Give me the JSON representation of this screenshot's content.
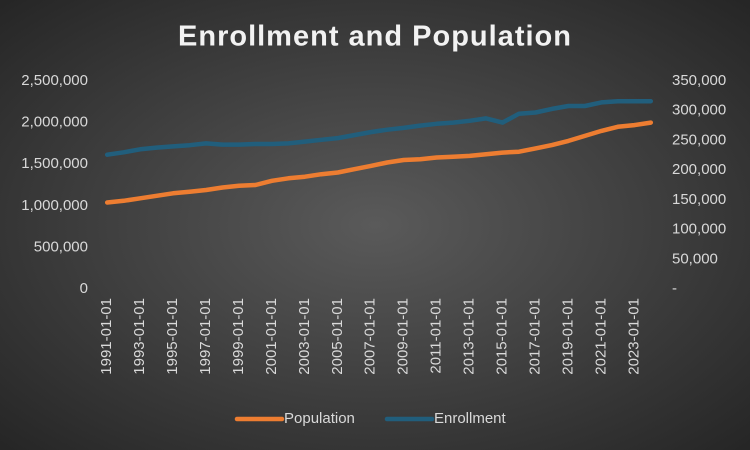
{
  "chart_data": {
    "type": "line",
    "title": "Enrollment and Population",
    "categories": [
      "1991-01-01",
      null,
      "1993-01-01",
      null,
      "1995-01-01",
      null,
      "1997-01-01",
      null,
      "1999-01-01",
      null,
      "2001-01-01",
      null,
      "2003-01-01",
      null,
      "2005-01-01",
      null,
      "2007-01-01",
      null,
      "2009-01-01",
      null,
      "2011-01-01",
      null,
      "2013-01-01",
      null,
      "2015-01-01",
      null,
      "2017-01-01",
      null,
      "2019-01-01",
      null,
      "2021-01-01",
      null,
      "2023-01-01",
      null
    ],
    "series": [
      {
        "name": "Population",
        "color": "#ed7d31",
        "values": [
          1040000,
          1060000,
          1090000,
          1120000,
          1150000,
          1170000,
          1190000,
          1220000,
          1240000,
          1250000,
          1300000,
          1330000,
          1350000,
          1380000,
          1400000,
          1440000,
          1480000,
          1520000,
          1550000,
          1560000,
          1580000,
          1590000,
          1600000,
          1620000,
          1640000,
          1650000,
          1690000,
          1730000,
          1780000,
          1840000,
          1900000,
          1950000,
          1970000,
          2000000
        ]
      },
      {
        "name": "Enrollment",
        "color": "#215e7c",
        "axis": "y2",
        "values": [
          226000,
          230000,
          235000,
          238000,
          240000,
          242000,
          245000,
          243000,
          243000,
          244000,
          244000,
          245000,
          248000,
          251000,
          254000,
          259000,
          264000,
          268000,
          271000,
          275000,
          278000,
          280000,
          283000,
          287000,
          280000,
          295000,
          297000,
          303000,
          308000,
          308000,
          314000,
          316000,
          316000,
          316000
        ]
      }
    ],
    "ylim": [
      0,
      2500000
    ],
    "yticks": [
      0,
      {
        "value": 500000,
        "label": "500,000"
      },
      {
        "value": 1000000,
        "label": "1,000,000"
      },
      {
        "value": 1500000,
        "label": "1,500,000"
      },
      {
        "value": 2000000,
        "label": "2,000,000"
      },
      {
        "value": 2500000,
        "label": "2,500,000"
      }
    ],
    "y2lim": [
      0,
      350000
    ],
    "y2ticks": [
      {
        "value": 0,
        "label": "-"
      },
      {
        "value": 50000,
        "label": "50,000"
      },
      {
        "value": 100000,
        "label": "100,000"
      },
      {
        "value": 150000,
        "label": "150,000"
      },
      {
        "value": 200000,
        "label": "200,000"
      },
      {
        "value": 250000,
        "label": "250,000"
      },
      {
        "value": 300000,
        "label": "300,000"
      },
      {
        "value": 350000,
        "label": "350,000"
      }
    ],
    "grid": false,
    "legend": "bottom"
  }
}
